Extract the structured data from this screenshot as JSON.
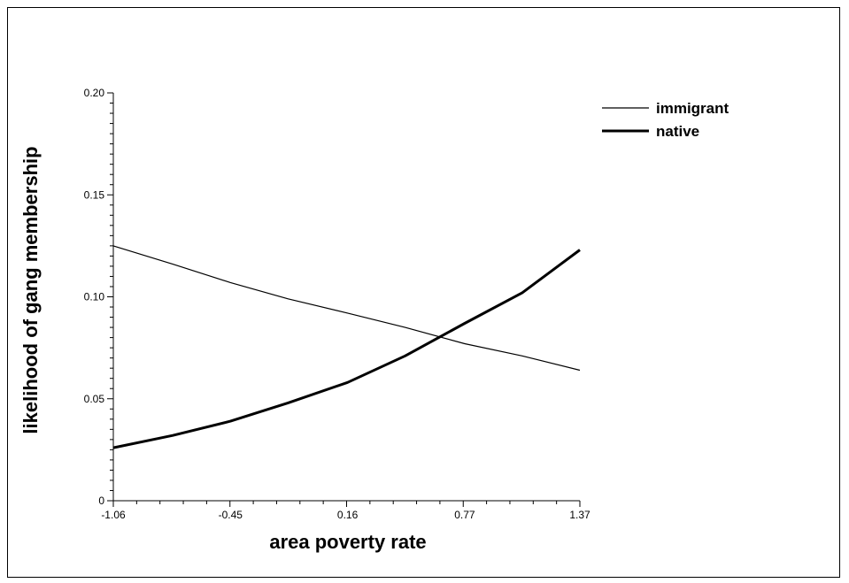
{
  "chart_data": {
    "type": "line",
    "xlabel": "area poverty rate",
    "ylabel": "likelihood of gang membership",
    "xlim": [
      -1.06,
      1.37
    ],
    "ylim": [
      0,
      0.2
    ],
    "x_ticks": [
      -1.06,
      -0.45,
      0.16,
      0.77,
      1.37
    ],
    "x_tick_labels": [
      "-1.06",
      "-0.45",
      "0.16",
      "0.77",
      "1.37"
    ],
    "y_ticks": [
      0,
      0.05,
      0.1,
      0.15,
      0.2
    ],
    "y_tick_labels": [
      "0",
      "0.05",
      "0.10",
      "0.15",
      "0.20"
    ],
    "legend_position": "top-right",
    "grid": false,
    "series": [
      {
        "name": "immigrant",
        "line_weight": "thin",
        "x": [
          -1.06,
          -0.75,
          -0.45,
          -0.15,
          0.16,
          0.46,
          0.77,
          1.07,
          1.37
        ],
        "y": [
          0.125,
          0.116,
          0.107,
          0.099,
          0.092,
          0.085,
          0.077,
          0.071,
          0.064
        ]
      },
      {
        "name": "native",
        "line_weight": "thick",
        "x": [
          -1.06,
          -0.75,
          -0.45,
          -0.15,
          0.16,
          0.46,
          0.77,
          1.07,
          1.37
        ],
        "y": [
          0.026,
          0.032,
          0.039,
          0.048,
          0.058,
          0.071,
          0.087,
          0.102,
          0.123
        ]
      }
    ]
  }
}
